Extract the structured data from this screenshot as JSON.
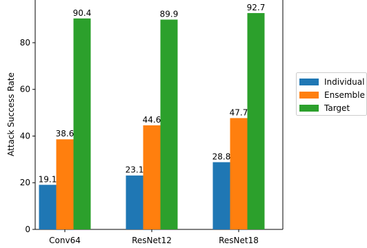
{
  "chart_data": {
    "type": "bar",
    "categories": [
      "Conv64",
      "ResNet12",
      "ResNet18"
    ],
    "series": [
      {
        "name": "Individual",
        "values": [
          19.1,
          23.1,
          28.8
        ],
        "color": "#1f77b4"
      },
      {
        "name": "Ensemble",
        "values": [
          38.6,
          44.6,
          47.7
        ],
        "color": "#ff7f0e"
      },
      {
        "name": "Target",
        "values": [
          90.4,
          89.9,
          92.7
        ],
        "color": "#2ca02c"
      }
    ],
    "xlabel": "",
    "ylabel": "Attack Success Rate",
    "ylim": [
      0,
      98.3
    ],
    "yticks": [
      0,
      20,
      40,
      60,
      80
    ],
    "ytick_labels": [
      "0",
      "20",
      "40",
      "60",
      "80"
    ],
    "xtick_labels": [
      "Conv64",
      "ResNet12",
      "ResNet18"
    ],
    "data_labels": [
      [
        "19.1",
        "23.1",
        "28.8"
      ],
      [
        "38.6",
        "44.6",
        "47.7"
      ],
      [
        "90.4",
        "89.9",
        "92.7"
      ]
    ],
    "legend_position": "right",
    "grid": false
  }
}
